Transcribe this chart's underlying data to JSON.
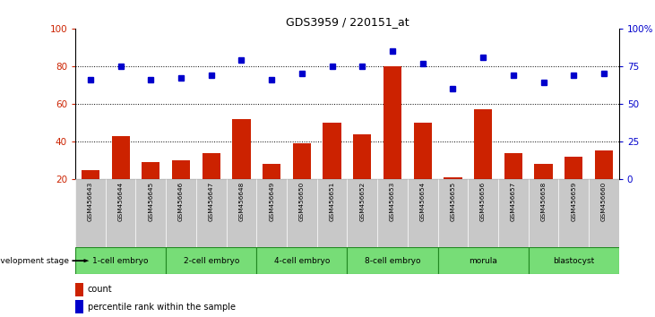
{
  "title": "GDS3959 / 220151_at",
  "samples": [
    "GSM456643",
    "GSM456644",
    "GSM456645",
    "GSM456646",
    "GSM456647",
    "GSM456648",
    "GSM456649",
    "GSM456650",
    "GSM456651",
    "GSM456652",
    "GSM456653",
    "GSM456654",
    "GSM456655",
    "GSM456656",
    "GSM456657",
    "GSM456658",
    "GSM456659",
    "GSM456660"
  ],
  "counts": [
    25,
    43,
    29,
    30,
    34,
    52,
    28,
    39,
    50,
    44,
    80,
    50,
    21,
    57,
    34,
    28,
    32,
    35
  ],
  "percentiles": [
    66,
    75,
    66,
    67,
    69,
    79,
    66,
    70,
    75,
    75,
    85,
    77,
    60,
    81,
    69,
    64,
    69,
    70
  ],
  "stage_groups": [
    {
      "label": "1-cell embryo",
      "start": 0,
      "end": 3
    },
    {
      "label": "2-cell embryo",
      "start": 3,
      "end": 6
    },
    {
      "label": "4-cell embryo",
      "start": 6,
      "end": 9
    },
    {
      "label": "8-cell embryo",
      "start": 9,
      "end": 12
    },
    {
      "label": "morula",
      "start": 12,
      "end": 15
    },
    {
      "label": "blastocyst",
      "start": 15,
      "end": 18
    }
  ],
  "bar_color": "#cc2200",
  "dot_color": "#0000cc",
  "tick_bg_color": "#c8c8c8",
  "stage_bg_color": "#77dd77",
  "stage_border_color": "#228822",
  "left_ylim": [
    20,
    100
  ],
  "right_ylim": [
    0,
    100
  ],
  "left_yticks": [
    20,
    40,
    60,
    80,
    100
  ],
  "right_yticks": [
    0,
    25,
    50,
    75,
    100
  ],
  "right_yticklabels": [
    "0",
    "25",
    "50",
    "75",
    "100%"
  ],
  "dotted_lines": [
    40,
    60,
    80
  ],
  "ylabel_left_color": "#cc2200",
  "ylabel_right_color": "#0000cc",
  "legend_count_label": "count",
  "legend_pct_label": "percentile rank within the sample",
  "dev_stage_label": "development stage",
  "fig_width": 7.31,
  "fig_height": 3.54
}
